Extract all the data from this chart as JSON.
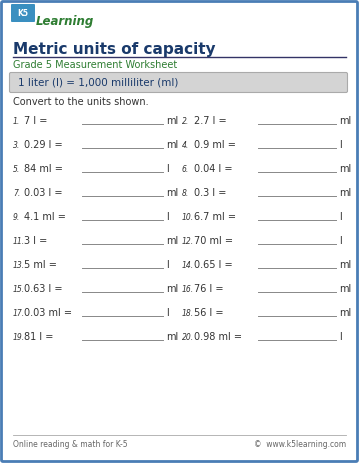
{
  "title": "Metric units of capacity",
  "subtitle": "Grade 5 Measurement Worksheet",
  "formula_box": "1 liter (l) = 1,000 milliliter (ml)",
  "instruction": "Convert to the units shown.",
  "problems": [
    {
      "num": "1.",
      "left": "7 l =",
      "unit_left": "ml",
      "num2": "2.",
      "right": "2.7 l =",
      "unit_right": "ml"
    },
    {
      "num": "3.",
      "left": "0.29 l =",
      "unit_left": "ml",
      "num2": "4.",
      "right": "0.9 ml =",
      "unit_right": "l"
    },
    {
      "num": "5.",
      "left": "84 ml =",
      "unit_left": "l",
      "num2": "6.",
      "right": "0.04 l =",
      "unit_right": "ml"
    },
    {
      "num": "7.",
      "left": "0.03 l =",
      "unit_left": "ml",
      "num2": "8.",
      "right": "0.3 l =",
      "unit_right": "ml"
    },
    {
      "num": "9.",
      "left": "4.1 ml =",
      "unit_left": "l",
      "num2": "10.",
      "right": "6.7 ml =",
      "unit_right": "l"
    },
    {
      "num": "11.",
      "left": "3 l =",
      "unit_left": "ml",
      "num2": "12.",
      "right": "70 ml =",
      "unit_right": "l"
    },
    {
      "num": "13.",
      "left": "5 ml =",
      "unit_left": "l",
      "num2": "14.",
      "right": "0.65 l =",
      "unit_right": "ml"
    },
    {
      "num": "15.",
      "left": "0.63 l =",
      "unit_left": "ml",
      "num2": "16.",
      "right": "76 l =",
      "unit_right": "ml"
    },
    {
      "num": "17.",
      "left": "0.03 ml =",
      "unit_left": "l",
      "num2": "18.",
      "right": "56 l =",
      "unit_right": "ml"
    },
    {
      "num": "19.",
      "left": "81 l =",
      "unit_left": "ml",
      "num2": "20.",
      "right": "0.98 ml =",
      "unit_right": "l"
    }
  ],
  "footer_left": "Online reading & math for K-5",
  "footer_right": "©  www.k5learning.com",
  "title_color": "#1a3a6b",
  "subtitle_color": "#2e7d32",
  "formula_color": "#1a3a6b",
  "border_color": "#4a7db5",
  "bg_color": "#ffffff",
  "formula_bg": "#d4d4d4",
  "text_color": "#333333",
  "footer_color": "#666666",
  "logo_k5_color": "#2e7d32",
  "line_color": "#888888"
}
